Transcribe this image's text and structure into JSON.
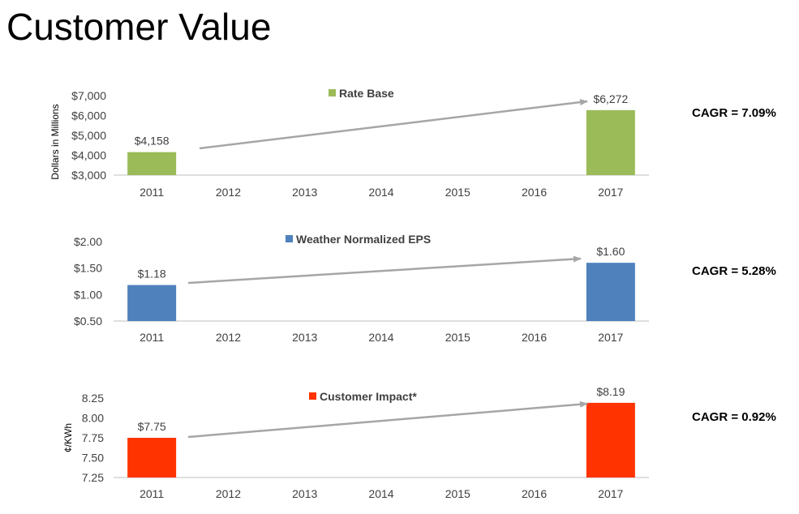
{
  "page": {
    "title": "Customer Value"
  },
  "chart_data": [
    {
      "type": "bar",
      "title": "Rate Base",
      "legend": "Rate Base",
      "color": "#9BBB59",
      "ylabel": "Dollars in Millions",
      "categories": [
        "2011",
        "2012",
        "2013",
        "2014",
        "2015",
        "2016",
        "2017"
      ],
      "values": [
        4158,
        null,
        null,
        null,
        null,
        null,
        6272
      ],
      "data_labels": [
        "$4,158",
        "",
        "",
        "",
        "",
        "",
        "$6,272"
      ],
      "ylim": [
        3000,
        7000
      ],
      "yticks": [
        3000,
        4000,
        5000,
        6000,
        7000
      ],
      "ytick_labels": [
        "$3,000",
        "$4,000",
        "$5,000",
        "$6,000",
        "$7,000"
      ],
      "cagr": "CAGR = 7.09%"
    },
    {
      "type": "bar",
      "title": "Weather Normalized EPS",
      "legend": "Weather Normalized EPS",
      "color": "#4F81BD",
      "ylabel": "",
      "categories": [
        "2011",
        "2012",
        "2013",
        "2014",
        "2015",
        "2016",
        "2017"
      ],
      "values": [
        1.18,
        null,
        null,
        null,
        null,
        null,
        1.6
      ],
      "data_labels": [
        "$1.18",
        "",
        "",
        "",
        "",
        "",
        "$1.60"
      ],
      "ylim": [
        0.5,
        2.0
      ],
      "yticks": [
        0.5,
        1.0,
        1.5,
        2.0
      ],
      "ytick_labels": [
        "$0.50",
        "$1.00",
        "$1.50",
        "$2.00"
      ],
      "cagr": "CAGR = 5.28%"
    },
    {
      "type": "bar",
      "title": "Customer Impact*",
      "legend": "Customer Impact*",
      "color": "#FF3300",
      "ylabel": "¢/KWh",
      "categories": [
        "2011",
        "2012",
        "2013",
        "2014",
        "2015",
        "2016",
        "2017"
      ],
      "values": [
        7.75,
        null,
        null,
        null,
        null,
        null,
        8.19
      ],
      "data_labels": [
        "$7.75",
        "",
        "",
        "",
        "",
        "",
        "$8.19"
      ],
      "ylim": [
        7.25,
        8.25
      ],
      "yticks": [
        7.25,
        7.5,
        7.75,
        8.0,
        8.25
      ],
      "ytick_labels": [
        "7.25",
        "7.50",
        "7.75",
        "8.00",
        "8.25"
      ],
      "cagr": "CAGR = 0.92%"
    }
  ]
}
